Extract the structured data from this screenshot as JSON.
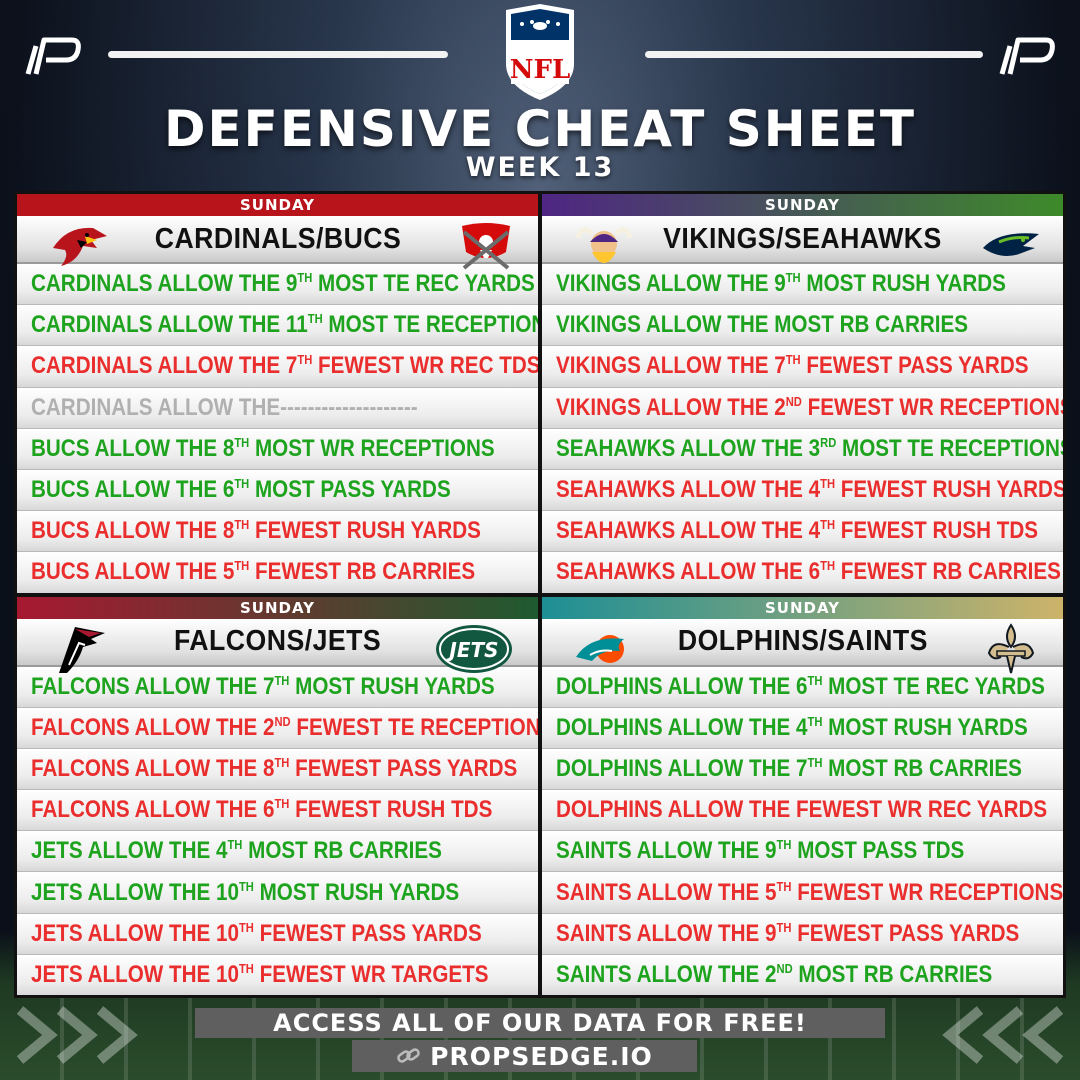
{
  "header": {
    "title": "DEFENSIVE CHEAT SHEET",
    "subtitle": "WEEK 13",
    "nfl_logo": "NFL"
  },
  "matchups": [
    {
      "day": "SUNDAY",
      "name": "CARDINALS/BUCS",
      "bar_colors": [
        "#b8141b",
        "#b8141b"
      ],
      "left_logo": "cardinals-logo-icon",
      "right_logo": "buccaneers-logo-icon",
      "stats": [
        {
          "pre": "CARDINALS ALLOW THE 9",
          "sup": "TH",
          "post": " MOST TE REC YARDS",
          "tone": "green"
        },
        {
          "pre": "CARDINALS ALLOW THE 11",
          "sup": "TH",
          "post": " MOST TE RECEPTIONS",
          "tone": "green"
        },
        {
          "pre": "CARDINALS ALLOW THE 7",
          "sup": "TH",
          "post": " FEWEST WR REC TDS",
          "tone": "red"
        },
        {
          "pre": "CARDINALS ALLOW THE--------------------",
          "sup": "",
          "post": "",
          "tone": "gray"
        },
        {
          "pre": "BUCS ALLOW THE 8",
          "sup": "TH",
          "post": " MOST WR RECEPTIONS",
          "tone": "green"
        },
        {
          "pre": "BUCS ALLOW THE 6",
          "sup": "TH",
          "post": " MOST PASS YARDS",
          "tone": "green"
        },
        {
          "pre": "BUCS ALLOW THE 8",
          "sup": "TH",
          "post": " FEWEST RUSH YARDS",
          "tone": "red"
        },
        {
          "pre": "BUCS ALLOW THE 5",
          "sup": "TH",
          "post": " FEWEST RB CARRIES",
          "tone": "red"
        }
      ]
    },
    {
      "day": "SUNDAY",
      "name": "VIKINGS/SEAHAWKS",
      "bar_colors": [
        "#4f2683",
        "#3e8a2a"
      ],
      "left_logo": "vikings-logo-icon",
      "right_logo": "seahawks-logo-icon",
      "stats": [
        {
          "pre": "VIKINGS ALLOW THE 9",
          "sup": "TH",
          "post": " MOST RUSH YARDS",
          "tone": "green"
        },
        {
          "pre": "VIKINGS ALLOW THE MOST RB CARRIES",
          "sup": "",
          "post": "",
          "tone": "green"
        },
        {
          "pre": "VIKINGS ALLOW THE 7",
          "sup": "TH",
          "post": " FEWEST PASS YARDS",
          "tone": "red"
        },
        {
          "pre": "VIKINGS ALLOW THE 2",
          "sup": "ND",
          "post": " FEWEST WR RECEPTIONS",
          "tone": "red"
        },
        {
          "pre": "SEAHAWKS ALLOW THE 3",
          "sup": "RD",
          "post": " MOST TE RECEPTIONS",
          "tone": "green"
        },
        {
          "pre": "SEAHAWKS ALLOW THE 4",
          "sup": "TH",
          "post": " FEWEST RUSH YARDS",
          "tone": "red"
        },
        {
          "pre": "SEAHAWKS ALLOW THE 4",
          "sup": "TH",
          "post": " FEWEST RUSH TDS",
          "tone": "red"
        },
        {
          "pre": "SEAHAWKS ALLOW THE 6",
          "sup": "TH",
          "post": " FEWEST RB CARRIES",
          "tone": "red"
        }
      ]
    },
    {
      "day": "SUNDAY",
      "name": "FALCONS/JETS",
      "bar_colors": [
        "#a71930",
        "#1f5a2f"
      ],
      "left_logo": "falcons-logo-icon",
      "right_logo": "jets-logo-icon",
      "stats": [
        {
          "pre": "FALCONS ALLOW THE 7",
          "sup": "TH",
          "post": " MOST RUSH YARDS",
          "tone": "green"
        },
        {
          "pre": "FALCONS ALLOW THE 2",
          "sup": "ND",
          "post": " FEWEST TE RECEPTIONS",
          "tone": "red"
        },
        {
          "pre": "FALCONS ALLOW THE 8",
          "sup": "TH",
          "post": " FEWEST PASS YARDS",
          "tone": "red"
        },
        {
          "pre": "FALCONS ALLOW THE 6",
          "sup": "TH",
          "post": " FEWEST RUSH TDS",
          "tone": "red"
        },
        {
          "pre": "JETS ALLOW THE 4",
          "sup": "TH",
          "post": " MOST RB CARRIES",
          "tone": "green"
        },
        {
          "pre": "JETS ALLOW THE 10",
          "sup": "TH",
          "post": " MOST RUSH YARDS",
          "tone": "green"
        },
        {
          "pre": "JETS ALLOW THE 10",
          "sup": "TH",
          "post": " FEWEST PASS YARDS",
          "tone": "red"
        },
        {
          "pre": "JETS ALLOW THE 10",
          "sup": "TH",
          "post": " FEWEST WR TARGETS",
          "tone": "red"
        }
      ]
    },
    {
      "day": "SUNDAY",
      "name": "DOLPHINS/SAINTS",
      "bar_colors": [
        "#1d8f95",
        "#cdb36a"
      ],
      "left_logo": "dolphins-logo-icon",
      "right_logo": "saints-logo-icon",
      "stats": [
        {
          "pre": "DOLPHINS ALLOW THE 6",
          "sup": "TH",
          "post": " MOST TE REC YARDS",
          "tone": "green"
        },
        {
          "pre": "DOLPHINS ALLOW THE 4",
          "sup": "TH",
          "post": " MOST RUSH YARDS",
          "tone": "green"
        },
        {
          "pre": "DOLPHINS ALLOW THE 7",
          "sup": "TH",
          "post": " MOST RB CARRIES",
          "tone": "green"
        },
        {
          "pre": "DOLPHINS ALLOW THE FEWEST WR REC YARDS",
          "sup": "",
          "post": "",
          "tone": "red"
        },
        {
          "pre": "SAINTS ALLOW THE 9",
          "sup": "TH",
          "post": " MOST PASS TDS",
          "tone": "green"
        },
        {
          "pre": "SAINTS ALLOW THE 5",
          "sup": "TH",
          "post": " FEWEST WR RECEPTIONS",
          "tone": "red"
        },
        {
          "pre": "SAINTS ALLOW THE 9",
          "sup": "TH",
          "post": " FEWEST PASS YARDS",
          "tone": "red"
        },
        {
          "pre": "SAINTS ALLOW THE 2",
          "sup": "ND",
          "post": " MOST RB CARRIES",
          "tone": "green"
        }
      ]
    }
  ],
  "footer": {
    "cta": "ACCESS ALL OF OUR DATA FOR FREE!",
    "url": "PROPSEDGE.IO"
  },
  "colors": {
    "green_text": "#1ea31e",
    "red_text": "#ea2e2e",
    "gray_text": "#b0b0b0"
  }
}
